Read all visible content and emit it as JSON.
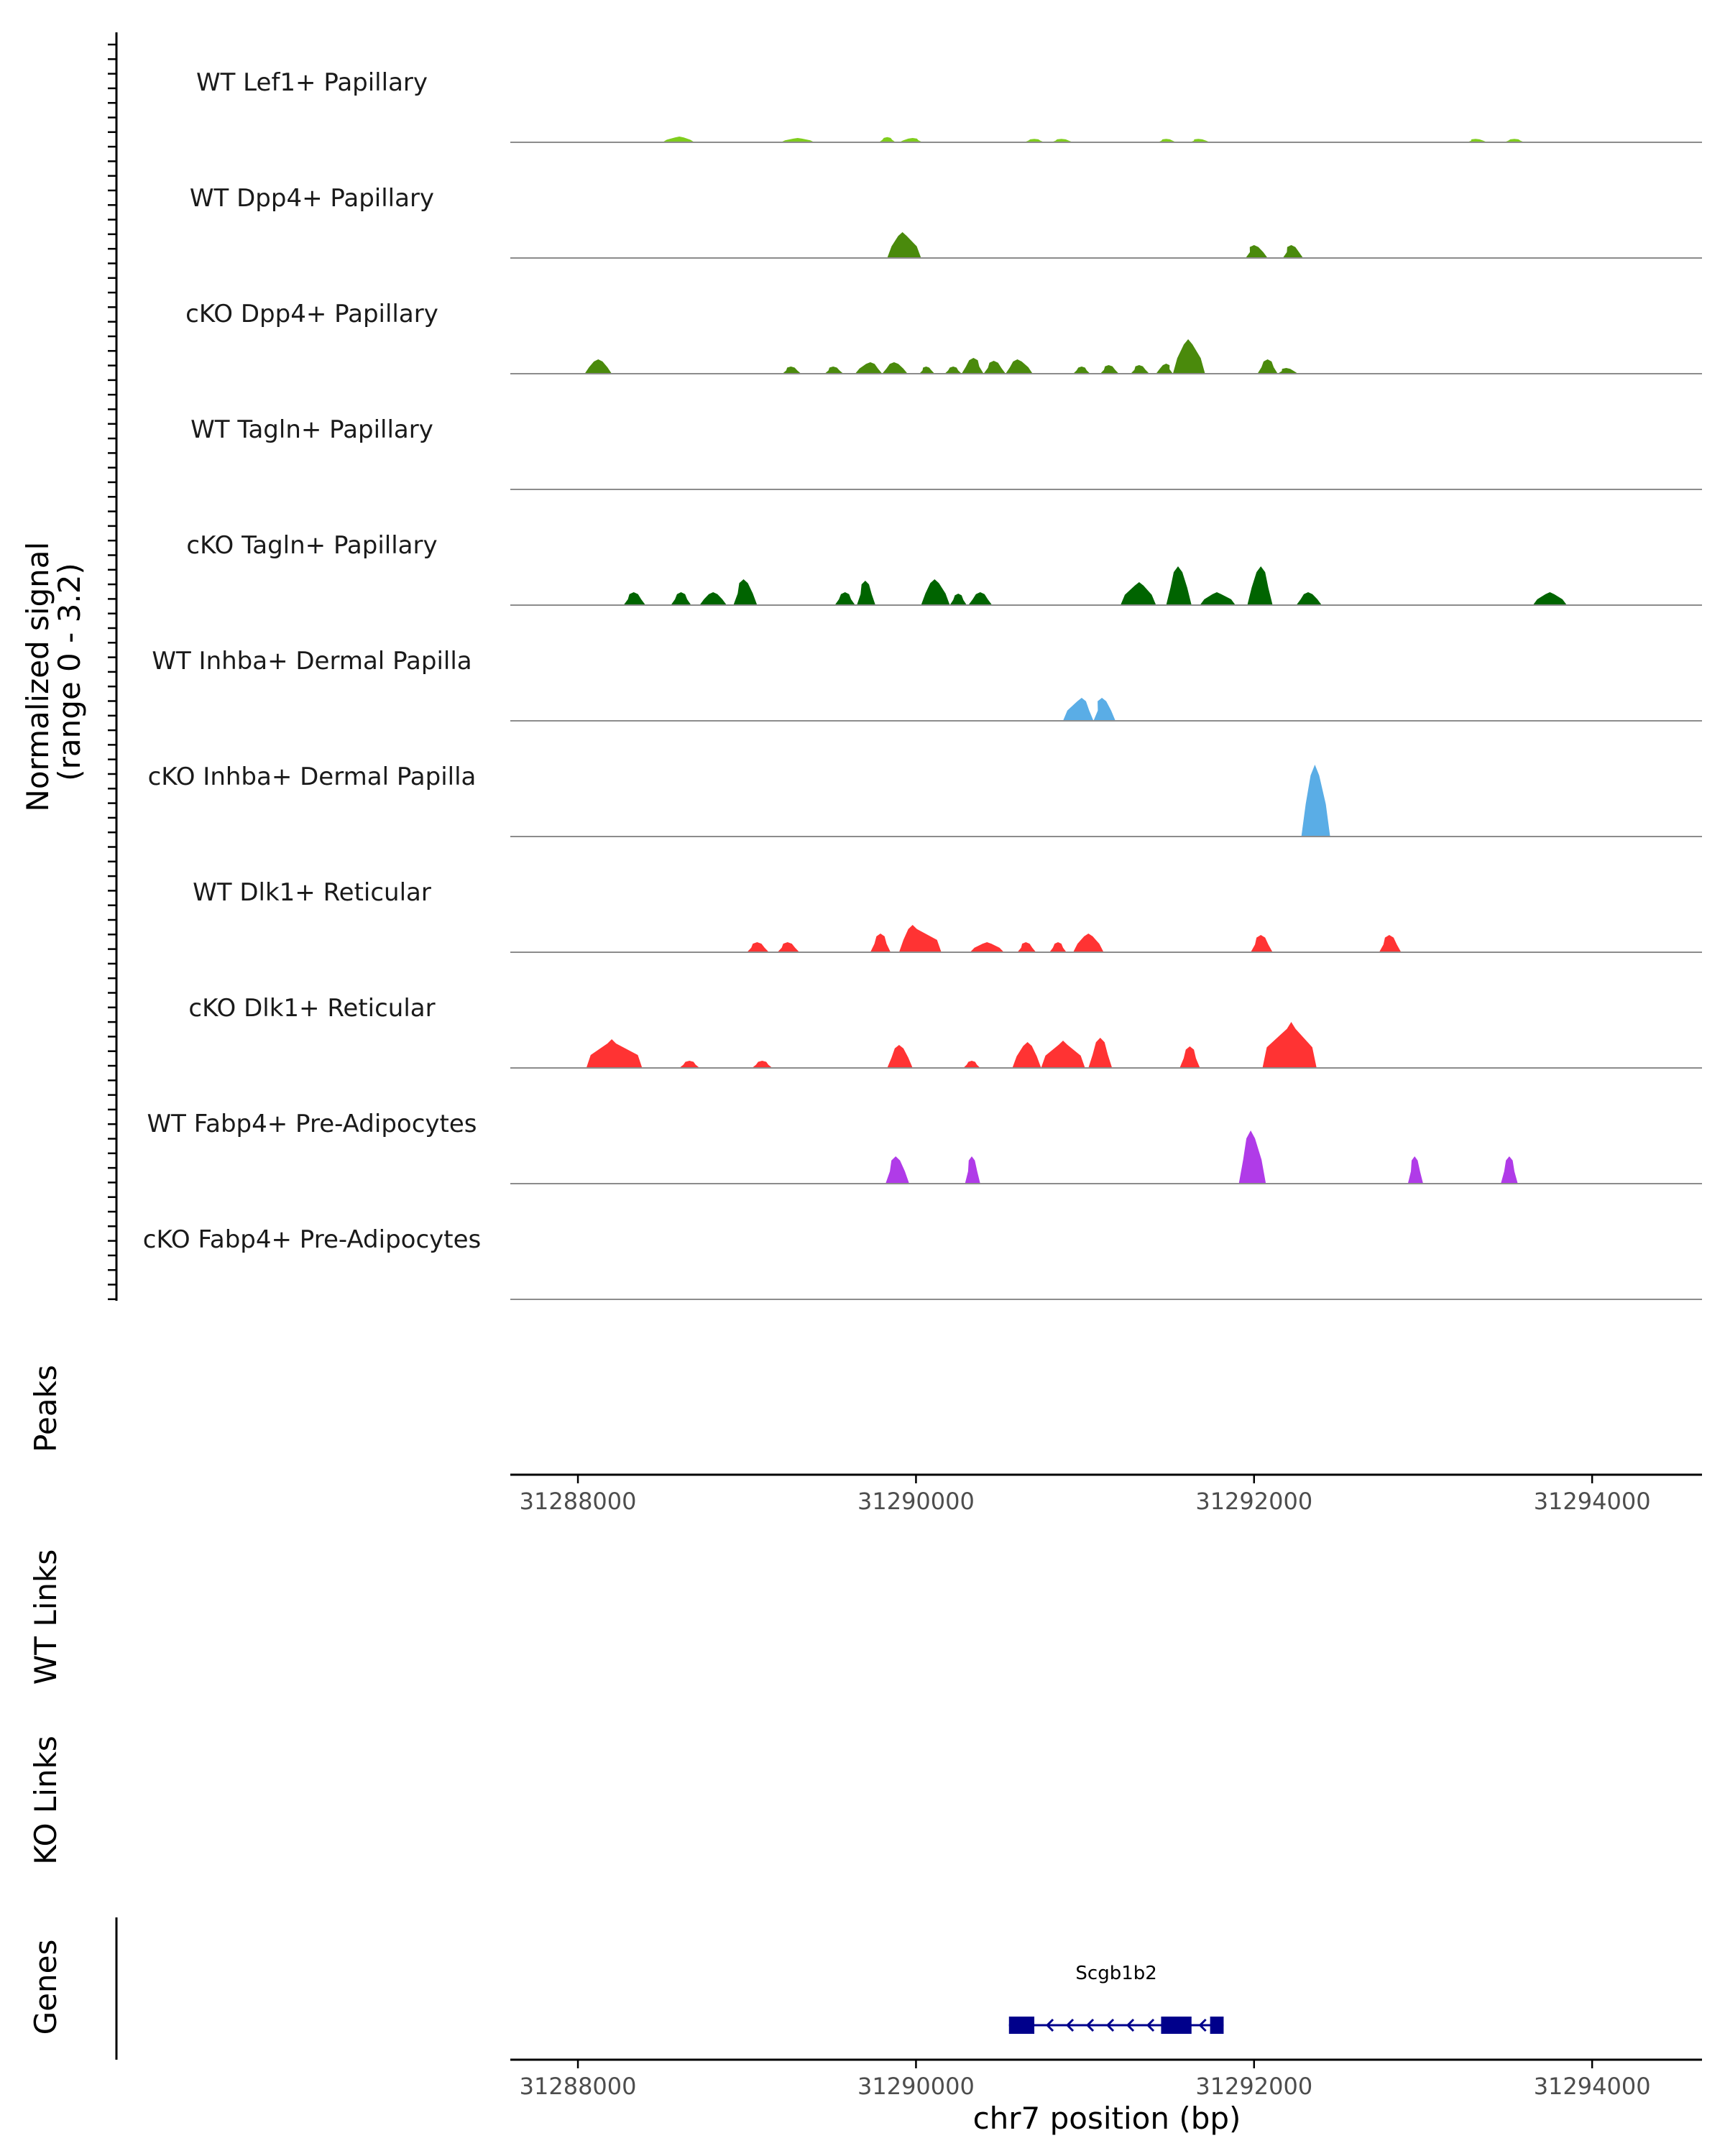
{
  "chart_data": {
    "type": "area",
    "title": "",
    "ylabel": "Normalized signal\n(range 0 - 3.2)",
    "ylabel_lines": [
      "Normalized signal",
      "(range 0 - 3.2)"
    ],
    "ylim": [
      0,
      3.2
    ],
    "xlabel": "chr7 position (bp)",
    "xlim": [
      31287600,
      31294650
    ],
    "x_ticks": [
      31288000,
      31290000,
      31292000,
      31294000
    ],
    "x_tick_labels": [
      "31288000",
      "31290000",
      "31292000",
      "31294000"
    ],
    "tracks": [
      {
        "name": "WT Lef1+ Papillary",
        "color": "#7fcd1d",
        "peaks": [
          [
            31288500,
            31288600,
            31288690,
            0.2
          ],
          [
            31289200,
            31289300,
            31289400,
            0.15
          ],
          [
            31289780,
            31289830,
            31289880,
            0.18
          ],
          [
            31289900,
            31289980,
            31290040,
            0.15
          ],
          [
            31290640,
            31290700,
            31290760,
            0.12
          ],
          [
            31290800,
            31290860,
            31290930,
            0.12
          ],
          [
            31291430,
            31291480,
            31291540,
            0.12
          ],
          [
            31291620,
            31291670,
            31291740,
            0.12
          ],
          [
            31293260,
            31293310,
            31293380,
            0.12
          ],
          [
            31293480,
            31293540,
            31293600,
            0.12
          ]
        ]
      },
      {
        "name": "WT Dpp4+ Papillary",
        "color": "#4a8a0c",
        "peaks": [
          [
            31289830,
            31289920,
            31290030,
            0.9
          ],
          [
            31291950,
            31292000,
            31292080,
            0.45
          ],
          [
            31292170,
            31292220,
            31292290,
            0.45
          ]
        ]
      },
      {
        "name": "cKO Dpp4+ Papillary",
        "color": "#4a8a0c",
        "peaks": [
          [
            31288040,
            31288120,
            31288200,
            0.5
          ],
          [
            31289210,
            31289260,
            31289320,
            0.25
          ],
          [
            31289460,
            31289510,
            31289570,
            0.25
          ],
          [
            31289640,
            31289730,
            31289800,
            0.4
          ],
          [
            31289800,
            31289870,
            31289950,
            0.4
          ],
          [
            31290020,
            31290060,
            31290110,
            0.25
          ],
          [
            31290170,
            31290220,
            31290270,
            0.25
          ],
          [
            31290270,
            31290340,
            31290400,
            0.55
          ],
          [
            31290400,
            31290460,
            31290530,
            0.45
          ],
          [
            31290530,
            31290600,
            31290690,
            0.5
          ],
          [
            31290930,
            31290980,
            31291030,
            0.25
          ],
          [
            31291090,
            31291140,
            31291200,
            0.3
          ],
          [
            31291270,
            31291320,
            31291380,
            0.3
          ],
          [
            31291420,
            31291480,
            31291520,
            0.35
          ],
          [
            31291520,
            31291610,
            31291710,
            1.2
          ],
          [
            31292020,
            31292080,
            31292140,
            0.5
          ],
          [
            31292140,
            31292190,
            31292260,
            0.2
          ]
        ]
      },
      {
        "name": "WT Tagln+ Papillary",
        "color": "#006400",
        "peaks": []
      },
      {
        "name": "cKO Tagln+ Papillary",
        "color": "#006400",
        "peaks": [
          [
            31288270,
            31288330,
            31288400,
            0.45
          ],
          [
            31288550,
            31288610,
            31288670,
            0.45
          ],
          [
            31288720,
            31288800,
            31288880,
            0.45
          ],
          [
            31288920,
            31288980,
            31289060,
            0.9
          ],
          [
            31289520,
            31289580,
            31289640,
            0.45
          ],
          [
            31289650,
            31289700,
            31289760,
            0.85
          ],
          [
            31290030,
            31290110,
            31290200,
            0.9
          ],
          [
            31290200,
            31290250,
            31290300,
            0.4
          ],
          [
            31290310,
            31290380,
            31290450,
            0.45
          ],
          [
            31291210,
            31291320,
            31291420,
            0.8
          ],
          [
            31291480,
            31291550,
            31291630,
            1.35
          ],
          [
            31291680,
            31291780,
            31291890,
            0.45
          ],
          [
            31291960,
            31292040,
            31292110,
            1.35
          ],
          [
            31292250,
            31292320,
            31292400,
            0.45
          ],
          [
            31293650,
            31293750,
            31293850,
            0.45
          ]
        ]
      },
      {
        "name": "WT Inhba+ Dermal Papilla",
        "color": "#5aade6",
        "peaks": [
          [
            31290870,
            31290980,
            31291050,
            0.8
          ],
          [
            31291050,
            31291100,
            31291180,
            0.8
          ]
        ]
      },
      {
        "name": "cKO Inhba+ Dermal Papilla",
        "color": "#5aade6",
        "peaks": [
          [
            31292280,
            31292360,
            31292450,
            2.5
          ]
        ]
      },
      {
        "name": "WT Dlk1+ Reticular",
        "color": "#ff3333",
        "peaks": [
          [
            31289000,
            31289060,
            31289130,
            0.35
          ],
          [
            31289180,
            31289240,
            31289310,
            0.35
          ],
          [
            31289730,
            31289790,
            31289850,
            0.65
          ],
          [
            31289900,
            31289980,
            31290150,
            0.95
          ],
          [
            31290320,
            31290420,
            31290520,
            0.35
          ],
          [
            31290600,
            31290650,
            31290710,
            0.35
          ],
          [
            31290790,
            31290840,
            31290890,
            0.35
          ],
          [
            31290930,
            31291020,
            31291110,
            0.65
          ],
          [
            31291980,
            31292040,
            31292110,
            0.6
          ],
          [
            31292740,
            31292800,
            31292870,
            0.6
          ]
        ]
      },
      {
        "name": "cKO Dlk1+ Reticular",
        "color": "#ff3333",
        "peaks": [
          [
            31288050,
            31288200,
            31288380,
            1.0
          ],
          [
            31288600,
            31288660,
            31288720,
            0.25
          ],
          [
            31289030,
            31289090,
            31289150,
            0.25
          ],
          [
            31289830,
            31289900,
            31289980,
            0.8
          ],
          [
            31290280,
            31290330,
            31290380,
            0.25
          ],
          [
            31290570,
            31290660,
            31290740,
            0.9
          ],
          [
            31290740,
            31290870,
            31291000,
            0.95
          ],
          [
            31291020,
            31291090,
            31291160,
            1.05
          ],
          [
            31291560,
            31291620,
            31291680,
            0.75
          ],
          [
            31292050,
            31292220,
            31292370,
            1.6
          ]
        ]
      },
      {
        "name": "WT Fabp4+ Pre-Adipocytes",
        "color": "#b03be8",
        "peaks": [
          [
            31289820,
            31289880,
            31289960,
            0.95
          ],
          [
            31290290,
            31290330,
            31290380,
            0.95
          ],
          [
            31291910,
            31291980,
            31292070,
            1.85
          ],
          [
            31292910,
            31292950,
            31293000,
            0.95
          ],
          [
            31293460,
            31293510,
            31293560,
            0.95
          ]
        ]
      },
      {
        "name": "cKO Fabp4+ Pre-Adipocytes",
        "color": "#b03be8",
        "peaks": []
      }
    ],
    "panels": {
      "peaks": "Peaks",
      "wt_links": "WT Links",
      "ko_links": "KO Links",
      "genes": "Genes"
    },
    "gene": {
      "name": "Scgb1b2",
      "start": 31290550,
      "end": 31291820,
      "strand": "-",
      "color": "#00008b",
      "exons": [
        [
          31290550,
          31290700
        ],
        [
          31291450,
          31291630
        ],
        [
          31291740,
          31291820
        ]
      ]
    }
  }
}
